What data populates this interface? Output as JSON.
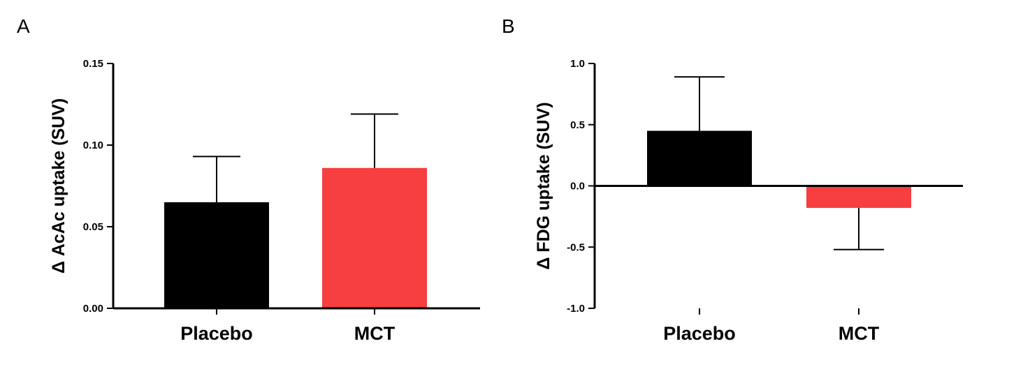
{
  "chart_data": [
    {
      "panel": "A",
      "type": "bar",
      "categories": [
        "Placebo",
        "MCT"
      ],
      "values": [
        0.065,
        0.086
      ],
      "errors": [
        0.028,
        0.033
      ],
      "colors": [
        "#000000",
        "#f73e40"
      ],
      "ylabel": "Δ AcAc uptake (SUV)",
      "ylim": [
        0.0,
        0.15
      ],
      "yticks": [
        0.0,
        0.05,
        0.1,
        0.15
      ],
      "ytick_labels": [
        "0.00",
        "0.05",
        "0.10",
        "0.15"
      ]
    },
    {
      "panel": "B",
      "type": "bar",
      "categories": [
        "Placebo",
        "MCT"
      ],
      "values": [
        0.45,
        -0.18
      ],
      "errors": [
        0.44,
        0.34
      ],
      "colors": [
        "#000000",
        "#f73e40"
      ],
      "ylabel": "Δ FDG uptake (SUV)",
      "ylim": [
        -1.0,
        1.0
      ],
      "yticks": [
        -1.0,
        -0.5,
        0.0,
        0.5,
        1.0
      ],
      "ytick_labels": [
        "-1.0",
        "-0.5",
        "0.0",
        "0.5",
        "1.0"
      ]
    }
  ]
}
